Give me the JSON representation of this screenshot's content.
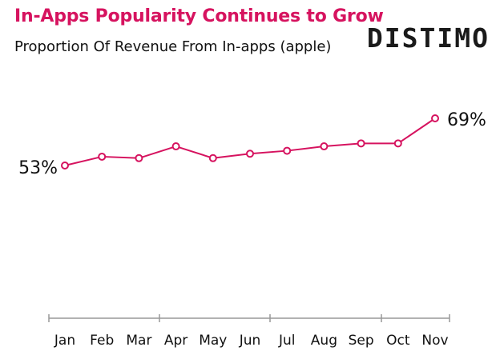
{
  "header": {
    "title": "In-Apps Popularity Continues to Grow",
    "subtitle": "Proportion Of Revenue From In-apps (apple)",
    "brand": "DISTIMO"
  },
  "colors": {
    "accent": "#d6135f",
    "axis": "#999999",
    "text": "#111111"
  },
  "chart_data": {
    "type": "line",
    "title": "In-Apps Popularity Continues to Grow",
    "subtitle": "Proportion Of Revenue From In-apps (apple)",
    "categories": [
      "Jan",
      "Feb",
      "Mar",
      "Apr",
      "May",
      "Jun",
      "Jul",
      "Aug",
      "Sep",
      "Oct",
      "Nov"
    ],
    "series": [
      {
        "values": [
          53,
          56,
          55.5,
          59.5,
          55.5,
          57,
          58,
          59.5,
          60.5,
          60.5,
          69
        ]
      }
    ],
    "data_labels": {
      "first": "53%",
      "last": "69%"
    },
    "ylim": [
      0,
      75
    ],
    "grid": false,
    "legend": "none"
  }
}
